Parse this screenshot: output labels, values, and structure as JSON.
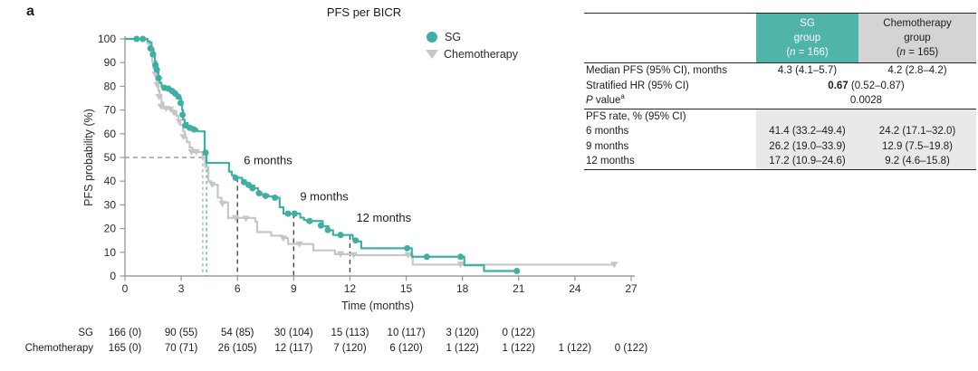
{
  "panel_label": "a",
  "colors": {
    "sg_teal": "#3fafa5",
    "sg_header_teal": "#4fb5ab",
    "chemo_gray": "#c6c6c6",
    "chemo_header_gray": "#d4d4d4",
    "rate_section_shade": "#e9e9e9",
    "milestone_dash": "#3b3b3b",
    "median_dash_gray": "#a8a8a8",
    "axis_gray": "#9d9d9d"
  },
  "chart_data": {
    "type": "line",
    "subtype": "kaplan-meier-step",
    "title": "PFS per BICR",
    "xlabel": "Time (months)",
    "ylabel": "PFS probability (%)",
    "xlim": [
      0,
      27
    ],
    "ylim": [
      0,
      100
    ],
    "x_ticks": [
      0,
      3,
      6,
      9,
      12,
      15,
      18,
      21,
      24,
      27
    ],
    "y_ticks": [
      0,
      10,
      20,
      30,
      40,
      50,
      60,
      70,
      80,
      90,
      100
    ],
    "grid": false,
    "legend_position": "top-right",
    "series": [
      {
        "name": "Chemotherapy",
        "color": "#c6c6c6",
        "marker": "triangle-down",
        "steps": [
          [
            0,
            100
          ],
          [
            1.2,
            98
          ],
          [
            1.3,
            95.4
          ],
          [
            1.38,
            92.7
          ],
          [
            1.45,
            90.4
          ],
          [
            1.5,
            87.8
          ],
          [
            1.58,
            85
          ],
          [
            1.65,
            82.8
          ],
          [
            1.7,
            80.5
          ],
          [
            1.78,
            78.2
          ],
          [
            1.85,
            75.5
          ],
          [
            1.95,
            73.2
          ],
          [
            2.05,
            70.6
          ],
          [
            2.5,
            70
          ],
          [
            2.6,
            68.7
          ],
          [
            2.75,
            67.5
          ],
          [
            2.85,
            65
          ],
          [
            2.95,
            63.7
          ],
          [
            3.1,
            61
          ],
          [
            3.2,
            58.4
          ],
          [
            3.3,
            56.5
          ],
          [
            3.45,
            54.2
          ],
          [
            3.6,
            52.3
          ],
          [
            4.15,
            50
          ],
          [
            4.28,
            46
          ],
          [
            4.45,
            40
          ],
          [
            4.6,
            38.5
          ],
          [
            4.95,
            33
          ],
          [
            5.15,
            31
          ],
          [
            5.5,
            24.5
          ],
          [
            6.95,
            23
          ],
          [
            7.05,
            18.5
          ],
          [
            7.8,
            17
          ],
          [
            8.4,
            16
          ],
          [
            8.7,
            13.5
          ],
          [
            9.9,
            13.4
          ],
          [
            10.05,
            10.8
          ],
          [
            11.2,
            9.2
          ],
          [
            12.3,
            8.8
          ],
          [
            15.35,
            4.8
          ],
          [
            26.2,
            4.8
          ]
        ],
        "censor_marks": [
          [
            1.62,
            85
          ],
          [
            1.72,
            80.5
          ],
          [
            1.82,
            75.5
          ],
          [
            1.92,
            71.5
          ],
          [
            2.2,
            70.6
          ],
          [
            2.42,
            70.3
          ],
          [
            2.62,
            68.7
          ],
          [
            2.9,
            65
          ],
          [
            3.12,
            58.6
          ],
          [
            3.55,
            52.3
          ],
          [
            3.8,
            52.3
          ],
          [
            4.65,
            38.5
          ],
          [
            5.2,
            30.5
          ],
          [
            5.9,
            24.5
          ],
          [
            6.45,
            24.2
          ],
          [
            8.45,
            15.8
          ],
          [
            9.3,
            13.4
          ],
          [
            11.5,
            9.2
          ],
          [
            12.2,
            8.8
          ],
          [
            15.1,
            8.8
          ],
          [
            17.9,
            4.8
          ],
          [
            26.1,
            4.8
          ]
        ]
      },
      {
        "name": "SG",
        "color": "#3fafa5",
        "marker": "circle",
        "steps": [
          [
            0,
            100
          ],
          [
            1.2,
            99
          ],
          [
            1.32,
            98.5
          ],
          [
            1.42,
            96
          ],
          [
            1.52,
            93.5
          ],
          [
            1.6,
            90.5
          ],
          [
            1.66,
            88.5
          ],
          [
            1.72,
            86.6
          ],
          [
            1.78,
            84
          ],
          [
            1.85,
            81.5
          ],
          [
            1.95,
            79.8
          ],
          [
            2.3,
            79
          ],
          [
            2.5,
            78
          ],
          [
            2.65,
            77
          ],
          [
            2.8,
            75.6
          ],
          [
            2.92,
            74.8
          ],
          [
            3,
            72.6
          ],
          [
            3.05,
            70
          ],
          [
            3.1,
            66
          ],
          [
            3.18,
            64.5
          ],
          [
            3.35,
            63
          ],
          [
            3.6,
            62
          ],
          [
            3.85,
            61
          ],
          [
            4.25,
            52
          ],
          [
            4.35,
            47.7
          ],
          [
            5.55,
            44
          ],
          [
            5.7,
            42.5
          ],
          [
            5.85,
            41.4
          ],
          [
            6.25,
            40.2
          ],
          [
            6.45,
            39.2
          ],
          [
            6.65,
            38.2
          ],
          [
            6.9,
            37
          ],
          [
            7.1,
            35
          ],
          [
            7.3,
            34.2
          ],
          [
            7.65,
            33.6
          ],
          [
            8.1,
            33
          ],
          [
            8.25,
            29
          ],
          [
            8.45,
            26.3
          ],
          [
            9.35,
            24.6
          ],
          [
            9.55,
            23.6
          ],
          [
            9.7,
            23.2
          ],
          [
            10.55,
            21
          ],
          [
            10.85,
            19.3
          ],
          [
            11.1,
            17.3
          ],
          [
            12.15,
            15.6
          ],
          [
            12.4,
            14.6
          ],
          [
            12.6,
            11.7
          ],
          [
            15.3,
            8.1
          ],
          [
            18.1,
            4.5
          ],
          [
            19.15,
            2.1
          ],
          [
            20.9,
            2.1
          ]
        ],
        "censor_marks": [
          [
            0.62,
            100
          ],
          [
            0.95,
            100
          ],
          [
            1.36,
            96
          ],
          [
            1.5,
            93.5
          ],
          [
            1.63,
            89
          ],
          [
            1.7,
            87
          ],
          [
            1.8,
            83.5
          ],
          [
            2.1,
            79.4
          ],
          [
            2.32,
            79
          ],
          [
            2.52,
            78
          ],
          [
            2.67,
            77
          ],
          [
            2.85,
            75.6
          ],
          [
            2.97,
            73
          ],
          [
            3.07,
            68
          ],
          [
            3.22,
            63.5
          ],
          [
            3.45,
            62.5
          ],
          [
            3.68,
            61.8
          ],
          [
            4.3,
            52
          ],
          [
            5.9,
            41.4
          ],
          [
            6.35,
            39.6
          ],
          [
            6.6,
            38.4
          ],
          [
            6.8,
            37
          ],
          [
            7.15,
            34.9
          ],
          [
            7.5,
            33.8
          ],
          [
            8,
            33
          ],
          [
            8.7,
            26.3
          ],
          [
            9.05,
            26.3
          ],
          [
            9.85,
            23.2
          ],
          [
            10.45,
            21.3
          ],
          [
            10.82,
            19.4
          ],
          [
            11.5,
            17.3
          ],
          [
            12.3,
            15
          ],
          [
            15.05,
            11.7
          ],
          [
            16.1,
            8.1
          ],
          [
            17.9,
            8.1
          ],
          [
            20.9,
            2.1
          ]
        ]
      }
    ],
    "median_guides": {
      "fifty_pct_line": {
        "y": 50,
        "x_from": 0,
        "x_to": 4.35
      },
      "chemo_median_x": 4.15,
      "sg_median_x": 4.35
    },
    "milestones": [
      {
        "month": 6,
        "top_pct": 41.4,
        "label": "6 months"
      },
      {
        "month": 9,
        "top_pct": 26.2,
        "label": "9 months"
      },
      {
        "month": 12,
        "top_pct": 17.2,
        "label": "12 months"
      }
    ]
  },
  "risk_table": {
    "rows": [
      {
        "label": "SG",
        "values": [
          "166 (0)",
          "90 (55)",
          "54 (85)",
          "30 (104)",
          "15 (113)",
          "10 (117)",
          "3 (120)",
          "0 (122)"
        ]
      },
      {
        "label": "Chemotherapy",
        "values": [
          "165 (0)",
          "70 (71)",
          "26 (105)",
          "12 (117)",
          "7 (120)",
          "6 (120)",
          "1 (122)",
          "1 (122)",
          "1 (122)",
          "0 (122)"
        ]
      }
    ]
  },
  "stats_table": {
    "header": {
      "sg": {
        "line1": "SG",
        "line2": "group",
        "n_pre": "(",
        "n_var": "n",
        "n_post": " = 166)"
      },
      "chemo": {
        "line1": "Chemotherapy",
        "line2": "group",
        "n_pre": "(",
        "n_var": "n",
        "n_post": " = 165)"
      }
    },
    "rows": {
      "median": {
        "label": "Median PFS (95% CI), months",
        "sg": "4.3 (4.1–5.7)",
        "chemo": "4.2 (2.8–4.2)"
      },
      "hr": {
        "label": "Stratified HR (95% CI)",
        "bold": "0.67",
        "rest": " (0.52–0.87)"
      },
      "pvalue": {
        "label_italic": "P",
        "label_rest": " value",
        "sup": "a",
        "value": "0.0028"
      },
      "rate_header": {
        "label": "PFS rate, % (95% CI)"
      },
      "rate_rows": [
        {
          "label": "6 months",
          "sg": "41.4 (33.2–49.4)",
          "chemo": "24.2 (17.1–32.0)"
        },
        {
          "label": "9 months",
          "sg": "26.2 (19.0–33.9)",
          "chemo": "12.9 (7.5–19.8)"
        },
        {
          "label": "12 months",
          "sg": "17.2 (10.9–24.6)",
          "chemo": "9.2 (4.6–15.8)"
        }
      ]
    }
  }
}
